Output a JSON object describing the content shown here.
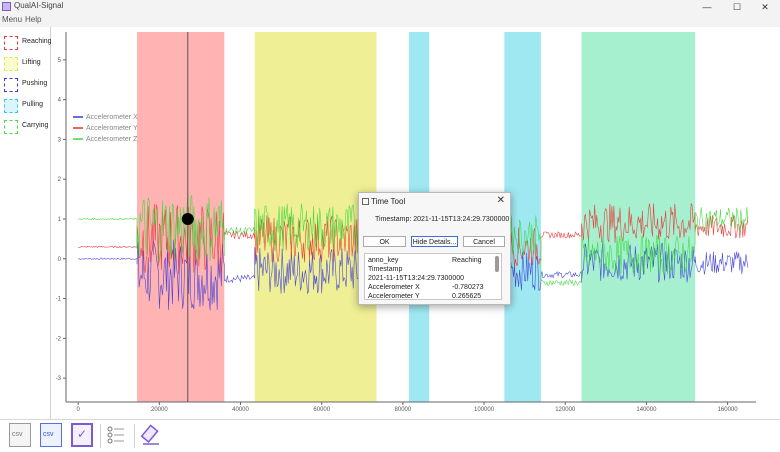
{
  "app": {
    "title": "QualAI-Signal"
  },
  "window_controls": {
    "minimize": "—",
    "maximize": "☐",
    "close": "✕"
  },
  "menu": {
    "items": [
      "Menu",
      "Help"
    ]
  },
  "labels": [
    {
      "name": "Reaching",
      "color": "#e83a3a"
    },
    {
      "name": "Lifting",
      "color": "#e6e64a"
    },
    {
      "name": "Pushing",
      "color": "#3a3ad8"
    },
    {
      "name": "Pulling",
      "color": "#35c9e0"
    },
    {
      "name": "Carrying",
      "color": "#4fd84f"
    }
  ],
  "chart_data": {
    "type": "line",
    "x_ticks": [
      "0",
      "20000",
      "40000",
      "60000",
      "80000",
      "100000",
      "120000",
      "140000",
      "160000"
    ],
    "y_ticks": [
      "-3",
      "-2",
      "-1",
      "0",
      "1",
      "2",
      "3",
      "4",
      "5"
    ],
    "xlim": [
      -3000,
      167000
    ],
    "ylim": [
      -3.6,
      5.7
    ],
    "series": [
      {
        "name": "Accelerometer X",
        "color": "#3a3ad8"
      },
      {
        "name": "Accelerometer Y",
        "color": "#e83030"
      },
      {
        "name": "Accelerometer Z",
        "color": "#3ad83a"
      }
    ],
    "annotations": [
      {
        "label": "Reaching",
        "x_start": 14500,
        "x_end": 36000,
        "color": "#ffb3b3"
      },
      {
        "label": "Lifting",
        "x_start": 43500,
        "x_end": 73500,
        "color": "#efef96"
      },
      {
        "label": "Pulling",
        "x_start": 81500,
        "x_end": 86500,
        "color": "#9fe8f2"
      },
      {
        "label": "Pulling",
        "x_start": 105000,
        "x_end": 114000,
        "color": "#9fe8f2"
      },
      {
        "label": "Carrying",
        "x_start": 124000,
        "x_end": 152000,
        "color": "#a6f0cf"
      }
    ],
    "cursor": {
      "x": 27000,
      "y": 1.0
    }
  },
  "toolbar": {
    "items": [
      {
        "name": "import-csv",
        "label": "csv"
      },
      {
        "name": "export-csv",
        "label": "csv"
      },
      {
        "name": "validate",
        "label": ""
      },
      {
        "name": "label-list",
        "label": ""
      },
      {
        "name": "eraser",
        "label": ""
      }
    ]
  },
  "dialog": {
    "title": "Time Tool",
    "close": "✕",
    "timestamp_text": "Timestamp: 2021-11-15T13:24:29.7300000",
    "ok_label": "OK",
    "hide_label": "Hide Details...",
    "cancel_label": "Cancel",
    "details": [
      {
        "key": "anno_key",
        "value": "Reaching"
      },
      {
        "key": "Timestamp",
        "value": ""
      },
      {
        "key": "2021-11-15T13:24:29.7300000",
        "value": ""
      },
      {
        "key": "Accelerometer X",
        "value": "-0.780273"
      },
      {
        "key": "Accelerometer Y",
        "value": "0.265625"
      }
    ]
  }
}
